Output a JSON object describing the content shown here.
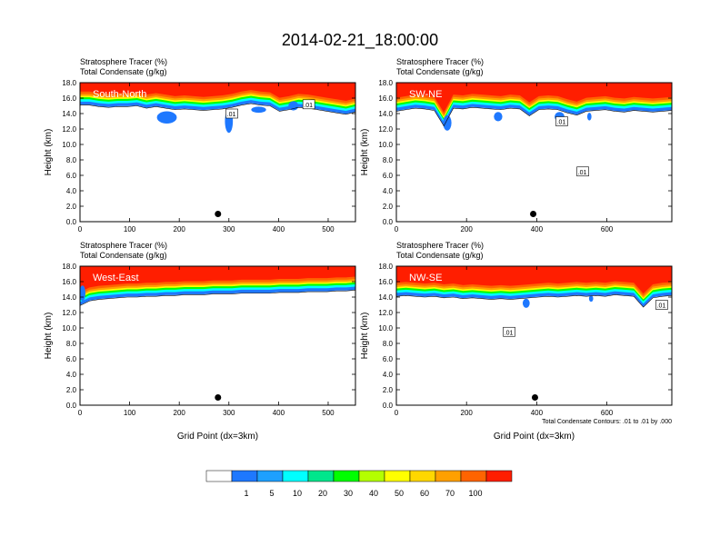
{
  "figure": {
    "title": "2014-02-21_18:00:00",
    "field_label_1": "Stratosphere Tracer   (%)",
    "field_label_2": "Total Condensate   (g/kg)",
    "ylabel": "Height (km)",
    "xlabel": "Grid Point (dx=3km)",
    "contour_note": "Total Condensate Contours: .01 to .01 by .000",
    "contour_label": ".01"
  },
  "chart_data": [
    {
      "type": "heatmap",
      "panel_label": "South-North",
      "title_lines": [
        "Stratosphere Tracer   (%)",
        "Total Condensate   (g/kg)"
      ],
      "xlabel": "",
      "ylabel": "Height (km)",
      "xlim": [
        0,
        555
      ],
      "ylim": [
        0,
        18
      ],
      "xticks": [
        0,
        100,
        200,
        300,
        400,
        500
      ],
      "yticks": [
        "0.0",
        "2.0",
        "4.0",
        "6.0",
        "8.0",
        "10.0",
        "12.0",
        "14.0",
        "16.0",
        "18.0"
      ],
      "tracer_top_km": [
        15.6,
        15.6,
        15.4,
        15.3,
        15.4,
        15.4,
        15.5,
        15.2,
        15.4,
        15.2,
        15.0,
        15.1,
        15.0,
        14.9,
        15.0,
        15.1,
        15.3,
        15.6,
        15.8,
        15.6,
        15.5,
        14.8,
        15.0,
        15.3,
        15.2,
        15.0,
        14.8,
        14.6,
        14.4,
        14.7
      ],
      "stratosphere_top_km": 18,
      "blobs": [
        {
          "x": 175,
          "y": 13.5,
          "rx": 20,
          "ry": 0.8
        },
        {
          "x": 300,
          "y": 13.0,
          "rx": 8,
          "ry": 1.5
        },
        {
          "x": 360,
          "y": 14.5,
          "rx": 15,
          "ry": 0.4
        },
        {
          "x": 430,
          "y": 15.0,
          "rx": 10,
          "ry": 0.6
        }
      ],
      "marker": {
        "x": 278,
        "y": 1.0
      },
      "contour_label_pos": [
        [
          305,
          14.0
        ],
        [
          460,
          15.2
        ]
      ]
    },
    {
      "type": "heatmap",
      "panel_label": "SW-NE",
      "title_lines": [
        "Stratosphere Tracer   (%)",
        "Total Condensate   (g/kg)"
      ],
      "xlabel": "",
      "ylabel": "Height (km)",
      "xlim": [
        0,
        785
      ],
      "ylim": [
        0,
        18
      ],
      "xticks": [
        0,
        200,
        400,
        600
      ],
      "yticks": [
        "0.0",
        "2.0",
        "4.0",
        "6.0",
        "8.0",
        "10.0",
        "12.0",
        "14.0",
        "16.0",
        "18.0"
      ],
      "tracer_top_km": [
        14.8,
        15.0,
        15.2,
        15.1,
        14.9,
        12.9,
        15.2,
        15.1,
        15.3,
        15.2,
        15.1,
        15.0,
        15.2,
        15.1,
        14.2,
        15.0,
        15.1,
        15.0,
        14.6,
        14.3,
        14.8,
        14.9,
        15.0,
        14.8,
        14.7,
        14.9,
        14.8,
        14.7,
        14.8,
        14.9
      ],
      "stratosphere_top_km": 18,
      "blobs": [
        {
          "x": 145,
          "y": 12.8,
          "rx": 12,
          "ry": 1.0
        },
        {
          "x": 290,
          "y": 13.6,
          "rx": 12,
          "ry": 0.6
        },
        {
          "x": 465,
          "y": 13.6,
          "rx": 14,
          "ry": 0.6
        },
        {
          "x": 550,
          "y": 13.6,
          "rx": 6,
          "ry": 0.5
        }
      ],
      "marker": {
        "x": 390,
        "y": 1.0
      },
      "contour_label_pos": [
        [
          470,
          13.0
        ],
        [
          530,
          6.5
        ]
      ]
    },
    {
      "type": "heatmap",
      "panel_label": "West-East",
      "title_lines": [
        "Stratosphere Tracer   (%)",
        "Total Condensate   (g/kg)"
      ],
      "xlabel": "Grid Point (dx=3km)",
      "ylabel": "Height (km)",
      "xlim": [
        0,
        555
      ],
      "ylim": [
        0,
        18
      ],
      "xticks": [
        0,
        100,
        200,
        300,
        400,
        500
      ],
      "yticks": [
        "0.0",
        "2.0",
        "4.0",
        "6.0",
        "8.0",
        "10.0",
        "12.0",
        "14.0",
        "16.0",
        "18.0"
      ],
      "tracer_top_km": [
        13.4,
        14.0,
        14.2,
        14.3,
        14.4,
        14.5,
        14.5,
        14.6,
        14.6,
        14.7,
        14.7,
        14.8,
        14.8,
        14.8,
        14.9,
        14.9,
        14.9,
        15.0,
        15.0,
        15.0,
        15.0,
        15.1,
        15.1,
        15.1,
        15.2,
        15.2,
        15.2,
        15.3,
        15.3,
        15.4
      ],
      "stratosphere_top_km": 18,
      "blobs": [
        {
          "x": 5,
          "y": 14.5,
          "rx": 6,
          "ry": 1.0
        }
      ],
      "marker": {
        "x": 278,
        "y": 1.0
      },
      "contour_label_pos": []
    },
    {
      "type": "heatmap",
      "panel_label": "NW-SE",
      "title_lines": [
        "Stratosphere Tracer   (%)",
        "Total Condensate   (g/kg)"
      ],
      "xlabel": "Grid Point (dx=3km)",
      "ylabel": "Height (km)",
      "xlim": [
        0,
        785
      ],
      "ylim": [
        0,
        18
      ],
      "xticks": [
        0,
        200,
        400,
        600
      ],
      "yticks": [
        "0.0",
        "2.0",
        "4.0",
        "6.0",
        "8.0",
        "10.0",
        "12.0",
        "14.0",
        "16.0",
        "18.0"
      ],
      "tracer_top_km": [
        14.6,
        14.7,
        14.6,
        14.5,
        14.6,
        14.4,
        14.5,
        14.3,
        14.4,
        14.3,
        14.2,
        14.3,
        14.2,
        14.3,
        14.4,
        14.5,
        14.6,
        14.5,
        14.6,
        14.7,
        14.6,
        14.7,
        14.6,
        14.8,
        14.7,
        14.6,
        13.2,
        14.4,
        14.6,
        14.7
      ],
      "stratosphere_top_km": 18,
      "blobs": [
        {
          "x": 370,
          "y": 13.2,
          "rx": 10,
          "ry": 0.6
        },
        {
          "x": 555,
          "y": 13.8,
          "rx": 6,
          "ry": 0.4
        },
        {
          "x": 750,
          "y": 13.0,
          "rx": 8,
          "ry": 0.5
        }
      ],
      "marker": {
        "x": 395,
        "y": 1.0
      },
      "contour_label_pos": [
        [
          320,
          9.5
        ],
        [
          755,
          13.0
        ]
      ]
    }
  ],
  "colorbar": {
    "colors": [
      "#ffffff",
      "#1e78ff",
      "#1ea0ff",
      "#00ffff",
      "#00e68c",
      "#00ff00",
      "#b4ff00",
      "#ffff00",
      "#ffd700",
      "#ffa000",
      "#ff6400",
      "#ff1e00"
    ],
    "labels": [
      "1",
      "5",
      "10",
      "20",
      "30",
      "40",
      "50",
      "60",
      "70",
      "100"
    ]
  }
}
